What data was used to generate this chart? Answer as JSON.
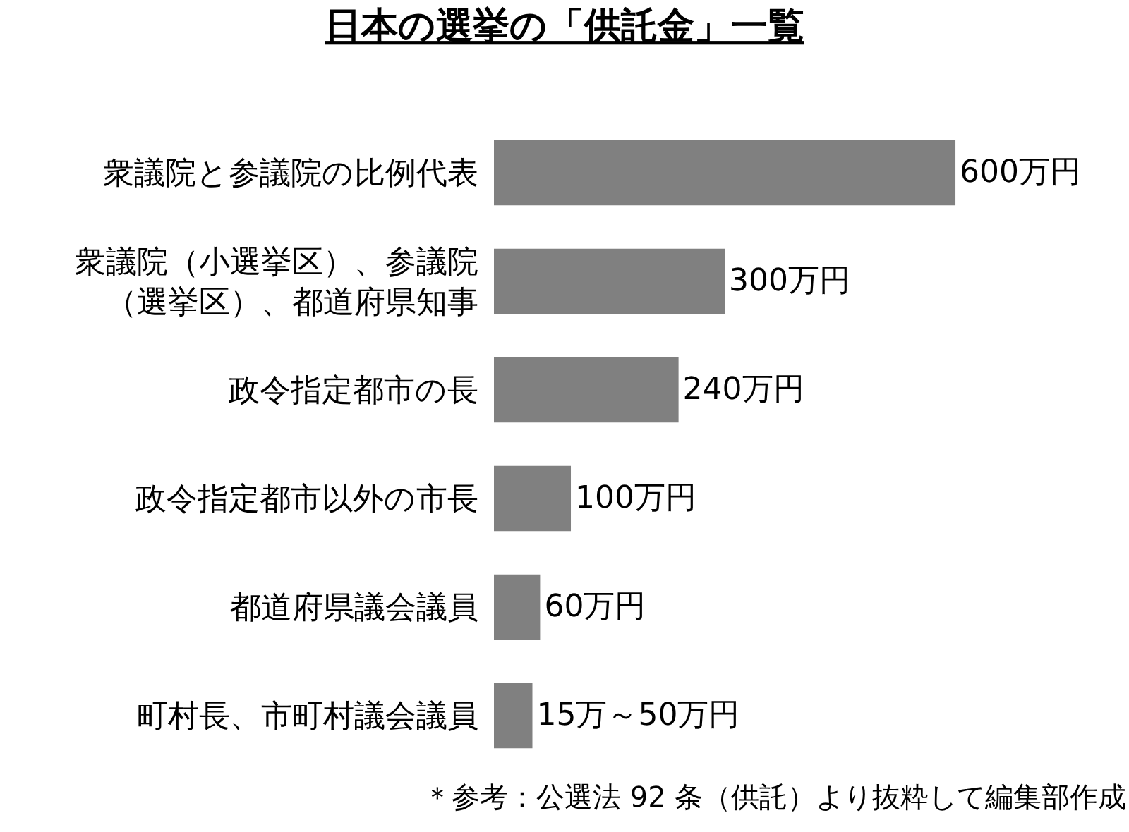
{
  "chart_data": {
    "type": "bar",
    "orientation": "horizontal",
    "title": "日本の選挙の「供託金」一覧",
    "categories": [
      "衆議院と参議院の比例代表",
      "衆議院（小選挙区）、参議院（選挙区）、都道府県知事",
      "政令指定都市の長",
      "政令指定都市以外の市長",
      "都道府県議会議員",
      "町村長、市町村議会議員"
    ],
    "values": [
      600,
      300,
      240,
      100,
      60,
      50
    ],
    "value_labels": [
      "600万円",
      "300万円",
      "240万円",
      "100万円",
      "60万円",
      "15万～50万円"
    ],
    "color": "#808080",
    "annotations": [
      "＊参考：公選法 92 条（供託）より抜粋して編集部作成"
    ],
    "legend": false
  }
}
